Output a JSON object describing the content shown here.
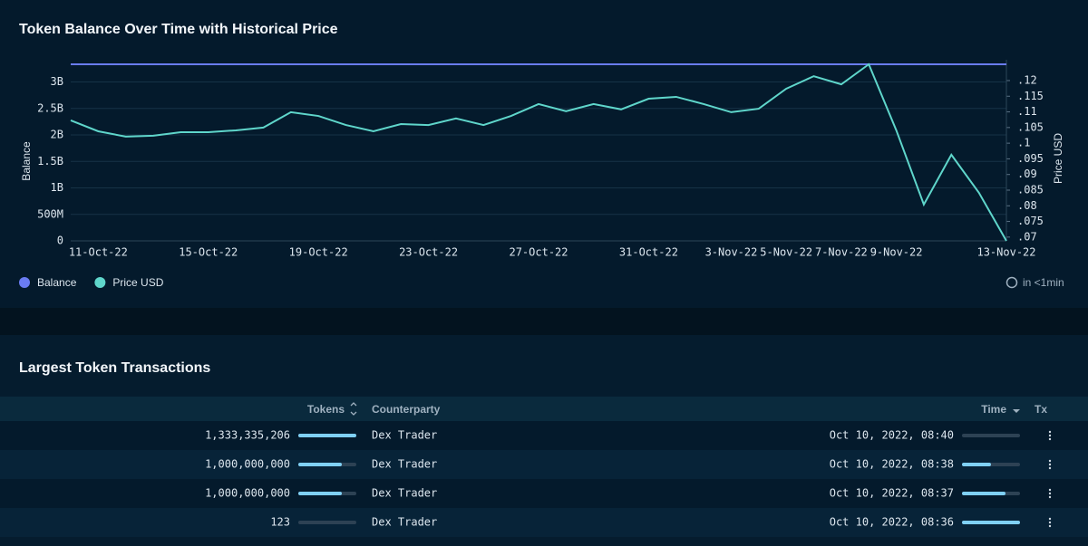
{
  "chart_data": {
    "type": "line",
    "title": "Token Balance Over Time with Historical Price",
    "ylabel": "Balance",
    "y2label": "Price USD",
    "categories": [
      null,
      "11-Oct-22",
      null,
      null,
      null,
      "15-Oct-22",
      null,
      null,
      null,
      "19-Oct-22",
      null,
      null,
      null,
      "23-Oct-22",
      null,
      null,
      null,
      "27-Oct-22",
      null,
      null,
      null,
      "31-Oct-22",
      null,
      null,
      "3-Nov-22",
      null,
      "5-Nov-22",
      null,
      "7-Nov-22",
      null,
      "9-Nov-22",
      null,
      null,
      null,
      "13-Nov-22"
    ],
    "series": [
      {
        "name": "Balance",
        "color": "#6a7cf2",
        "values": [
          3333335329,
          3333335329,
          3333335329,
          3333335329,
          3333335329,
          3333335329,
          3333335329,
          3333335329,
          3333335329,
          3333335329,
          3333335329,
          3333335329,
          3333335329,
          3333335329,
          3333335329,
          3333335329,
          3333335329,
          3333335329,
          3333335329,
          3333335329,
          3333335329,
          3333335329,
          3333335329,
          3333335329,
          3333335329,
          3333335329,
          3333335329,
          3333335329,
          3333335329,
          3333335329,
          3333335329,
          3333335329,
          3333335329,
          3333335329,
          3333335329
        ]
      },
      {
        "name": "Price USD",
        "color": "#5fd6cb",
        "axis": "y2",
        "values": [
          0.1073,
          0.1038,
          0.1021,
          0.1024,
          0.1035,
          0.1035,
          0.1041,
          0.105,
          0.1099,
          0.1087,
          0.1058,
          0.1038,
          0.1061,
          0.1058,
          0.1079,
          0.1058,
          0.1087,
          0.1125,
          0.1102,
          0.1125,
          0.1108,
          0.1142,
          0.1148,
          0.1125,
          0.1099,
          0.111,
          0.1174,
          0.1214,
          0.1188,
          0.1252,
          0.1041,
          0.0804,
          0.0963,
          0.0842,
          0.0688
        ]
      }
    ],
    "ylim": [
      0,
      3333335329
    ],
    "yticks": [
      0,
      {
        "value": 500000000,
        "label": "500M"
      },
      {
        "value": 1000000000,
        "label": "1B"
      },
      {
        "value": 1500000000,
        "label": "1.5B"
      },
      {
        "value": 2000000000,
        "label": "2B"
      },
      {
        "value": 2500000000,
        "label": "2.5B"
      },
      {
        "value": 3000000000,
        "label": "3B"
      }
    ],
    "y2lim": [
      0.0688,
      0.1252
    ],
    "y2ticks": [
      {
        "value": 0.07,
        "label": ".07"
      },
      {
        "value": 0.075,
        "label": ".075"
      },
      {
        "value": 0.08,
        "label": ".08"
      },
      {
        "value": 0.085,
        "label": ".085"
      },
      {
        "value": 0.09,
        "label": ".09"
      },
      {
        "value": 0.095,
        "label": ".095"
      },
      {
        "value": 0.1,
        "label": ".1"
      },
      {
        "value": 0.105,
        "label": ".105"
      },
      {
        "value": 0.11,
        "label": ".11"
      },
      {
        "value": 0.115,
        "label": ".115"
      },
      {
        "value": 0.12,
        "label": ".12"
      }
    ],
    "grid": true,
    "legend": "bottom-left"
  },
  "refresh": "in <1min",
  "table": {
    "title": "Largest Token Transactions",
    "columns": [
      "Tokens",
      "Counterparty",
      "Time",
      "Tx"
    ],
    "rows": [
      {
        "tokens": {
          "value": 1333335206,
          "label": "1,333,335,206"
        },
        "counterparty": "Dex Trader",
        "time": "Oct 10, 2022, 08:40"
      },
      {
        "tokens": {
          "value": 1000000000,
          "label": "1,000,000,000"
        },
        "counterparty": "Dex Trader",
        "time": "Oct 10, 2022, 08:38"
      },
      {
        "tokens": {
          "value": 1000000000,
          "label": "1,000,000,000"
        },
        "counterparty": "Dex Trader",
        "time": "Oct 10, 2022, 08:37"
      },
      {
        "tokens": {
          "value": 123,
          "label": "123"
        },
        "counterparty": "Dex Trader",
        "time": "Oct 10, 2022, 08:36"
      }
    ]
  }
}
